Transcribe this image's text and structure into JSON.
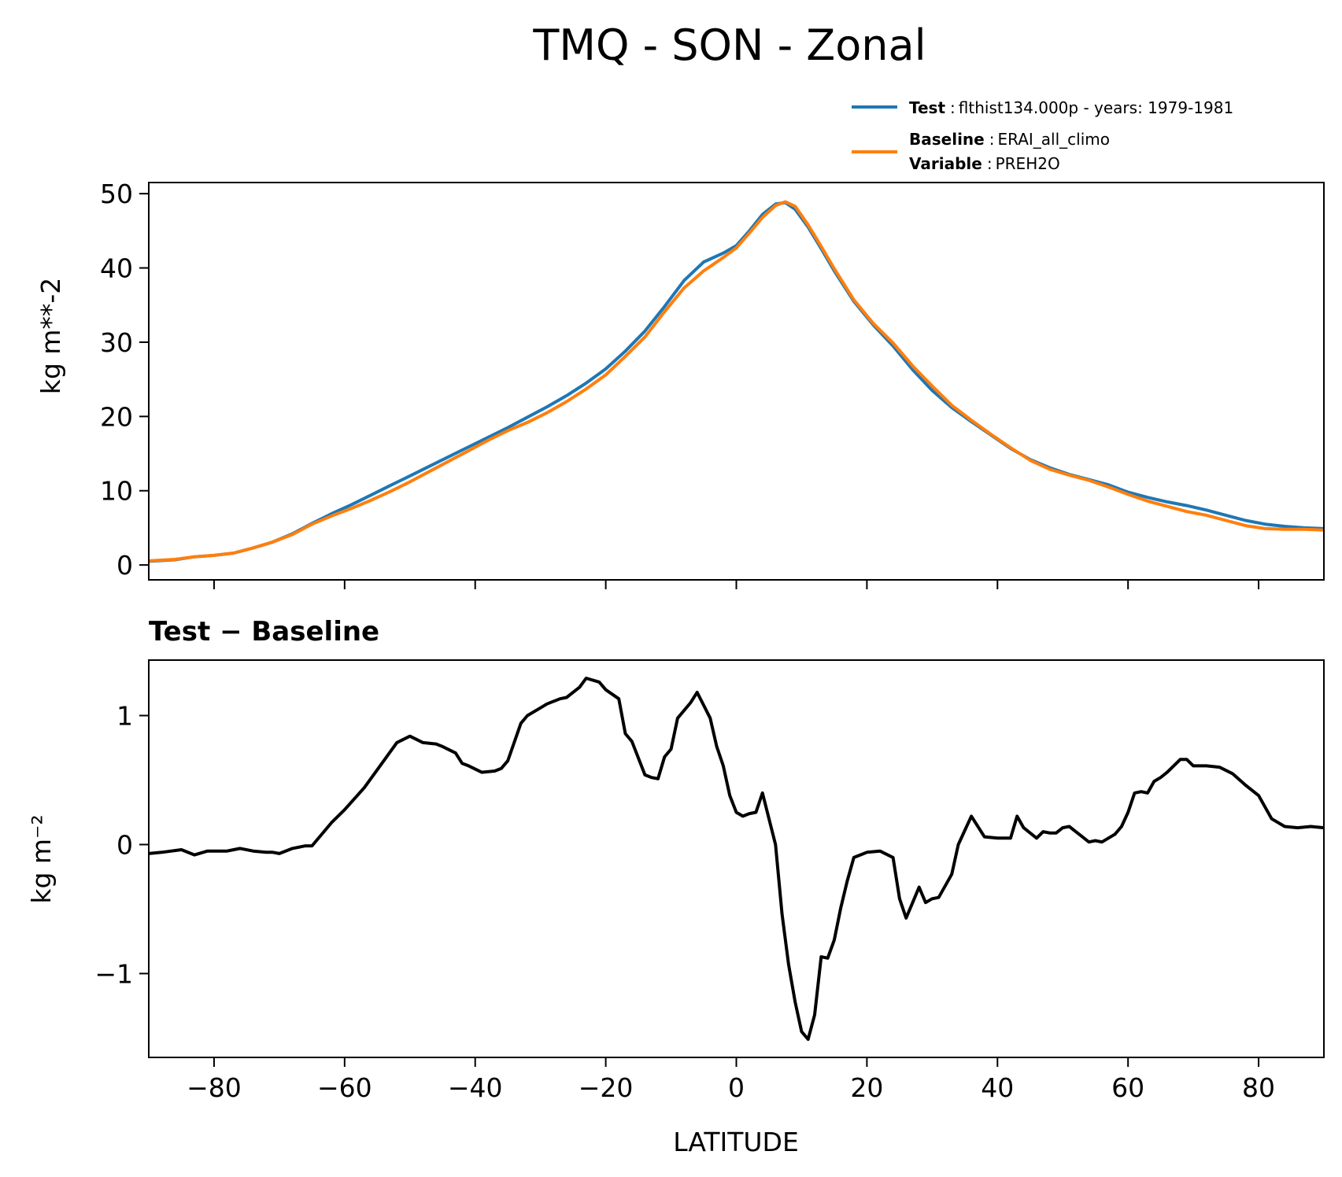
{
  "figure": {
    "title": "TMQ - SON - Zonal"
  },
  "legend": {
    "test_name": "Test",
    "test_desc": "flthist134.000p - years: 1979-1981",
    "baseline_name": "Baseline",
    "baseline_desc": "ERAI_all_climo",
    "variable_name": "Variable",
    "variable_desc": "PREH2O",
    "separator": ":"
  },
  "colors": {
    "test": "#1f77b4",
    "baseline": "#ff7f0e",
    "diff": "#000000"
  },
  "chart_data": [
    {
      "type": "line",
      "title": "",
      "xlabel": "",
      "ylabel": "kg m**-2",
      "xlim": [
        -90,
        90
      ],
      "ylim": [
        -2,
        51.5
      ],
      "yticks": [
        0,
        10,
        20,
        30,
        40,
        50
      ],
      "ytick_labels": [
        "0",
        "10",
        "20",
        "30",
        "40",
        "50"
      ],
      "xticks": [
        -80,
        -60,
        -40,
        -20,
        0,
        20,
        40,
        60,
        80
      ],
      "x": [
        -90,
        -86,
        -83,
        -80,
        -77,
        -74,
        -71,
        -68,
        -65,
        -62,
        -59,
        -56,
        -53,
        -50,
        -47,
        -44,
        -41,
        -38,
        -35,
        -32,
        -29,
        -26,
        -23,
        -20,
        -17,
        -14,
        -11,
        -8,
        -5,
        -2,
        0,
        2,
        4,
        6,
        7.5,
        9,
        11,
        13,
        15,
        18,
        21,
        24,
        27,
        30,
        33,
        36,
        39,
        42,
        45,
        48,
        51,
        54,
        57,
        60,
        63,
        66,
        69,
        72,
        75,
        78,
        81,
        84,
        87,
        90
      ],
      "series": [
        {
          "name": "Test",
          "values": [
            0.5,
            0.7,
            1.1,
            1.3,
            1.6,
            2.3,
            3.1,
            4.2,
            5.6,
            6.9,
            8.1,
            9.4,
            10.7,
            12.0,
            13.3,
            14.6,
            15.9,
            17.2,
            18.5,
            19.9,
            21.3,
            22.8,
            24.5,
            26.4,
            28.8,
            31.5,
            34.8,
            38.3,
            40.8,
            42.0,
            43.0,
            45.0,
            47.2,
            48.6,
            48.8,
            47.9,
            45.5,
            42.6,
            39.6,
            35.5,
            32.3,
            29.5,
            26.3,
            23.5,
            21.2,
            19.3,
            17.5,
            15.7,
            14.2,
            13.1,
            12.2,
            11.5,
            10.8,
            9.8,
            9.1,
            8.5,
            8.0,
            7.4,
            6.7,
            6.0,
            5.5,
            5.2,
            5.0,
            4.9
          ]
        },
        {
          "name": "Baseline",
          "values": [
            0.55,
            0.75,
            1.1,
            1.3,
            1.6,
            2.3,
            3.1,
            4.1,
            5.5,
            6.6,
            7.6,
            8.7,
            9.9,
            11.2,
            12.6,
            14.0,
            15.4,
            16.8,
            18.1,
            19.2,
            20.5,
            22.0,
            23.7,
            25.6,
            28.1,
            30.7,
            34.1,
            37.3,
            39.6,
            41.4,
            42.7,
            44.7,
            46.8,
            48.4,
            48.9,
            48.3,
            45.8,
            42.9,
            39.9,
            35.7,
            32.5,
            29.9,
            26.8,
            24.1,
            21.5,
            19.5,
            17.6,
            15.8,
            14.1,
            12.9,
            12.1,
            11.4,
            10.5,
            9.5,
            8.6,
            7.9,
            7.2,
            6.7,
            6.0,
            5.3,
            4.9,
            4.8,
            4.8,
            4.7
          ]
        }
      ]
    },
    {
      "type": "line",
      "title": "Test − Baseline",
      "xlabel": "LATITUDE",
      "ylabel": "kg m⁻²",
      "xlim": [
        -90,
        90
      ],
      "ylim": [
        -1.65,
        1.43
      ],
      "yticks": [
        -1,
        0,
        1
      ],
      "ytick_labels": [
        "−1",
        "0",
        "1"
      ],
      "xticks": [
        -80,
        -60,
        -40,
        -20,
        0,
        20,
        40,
        60,
        80
      ],
      "xtick_labels": [
        "−80",
        "−60",
        "−40",
        "−20",
        "0",
        "20",
        "40",
        "60",
        "80"
      ],
      "x": [
        -90,
        -88,
        -85,
        -83,
        -81,
        -80,
        -78,
        -77,
        -76,
        -74,
        -72,
        -71,
        -70,
        -68,
        -66,
        -65,
        -62,
        -60,
        -57,
        -55,
        -53,
        -52,
        -50,
        -48,
        -46,
        -45,
        -43,
        -42,
        -41,
        -39,
        -37,
        -36,
        -35,
        -33,
        -32,
        -30,
        -29,
        -27,
        -26,
        -24,
        -23,
        -21,
        -20,
        -18,
        -17,
        -16,
        -14,
        -13,
        -12,
        -11,
        -10,
        -9,
        -7,
        -6,
        -5,
        -4,
        -3,
        -2,
        -1,
        0,
        1,
        2,
        3,
        4,
        5,
        6,
        7,
        8,
        9,
        10,
        11,
        12,
        13,
        14,
        15,
        16,
        17,
        18,
        19,
        20,
        22,
        24,
        25,
        26,
        27,
        28,
        29,
        30,
        31,
        33,
        34,
        36,
        38,
        40,
        41,
        42,
        43,
        44,
        46,
        47,
        48,
        49,
        50,
        51,
        52,
        53,
        54,
        55,
        56,
        58,
        59,
        60,
        61,
        62,
        63,
        64,
        65,
        66,
        68,
        69,
        70,
        72,
        74,
        76,
        78,
        80,
        82,
        84,
        86,
        88,
        90
      ],
      "series": [
        {
          "name": "Test − Baseline",
          "values": [
            -0.07,
            -0.06,
            -0.04,
            -0.08,
            -0.05,
            -0.05,
            -0.05,
            -0.04,
            -0.03,
            -0.05,
            -0.06,
            -0.06,
            -0.07,
            -0.03,
            -0.01,
            -0.01,
            0.17,
            0.27,
            0.44,
            0.58,
            0.72,
            0.79,
            0.84,
            0.79,
            0.78,
            0.76,
            0.71,
            0.63,
            0.61,
            0.56,
            0.57,
            0.59,
            0.65,
            0.94,
            1.0,
            1.06,
            1.09,
            1.13,
            1.14,
            1.22,
            1.29,
            1.26,
            1.2,
            1.13,
            0.86,
            0.8,
            0.54,
            0.52,
            0.51,
            0.68,
            0.74,
            0.98,
            1.1,
            1.18,
            1.08,
            0.98,
            0.76,
            0.61,
            0.38,
            0.25,
            0.22,
            0.24,
            0.25,
            0.4,
            0.2,
            0.0,
            -0.54,
            -0.93,
            -1.22,
            -1.45,
            -1.51,
            -1.32,
            -0.87,
            -0.88,
            -0.74,
            -0.49,
            -0.28,
            -0.1,
            -0.08,
            -0.06,
            -0.05,
            -0.1,
            -0.42,
            -0.57,
            -0.45,
            -0.33,
            -0.45,
            -0.42,
            -0.41,
            -0.23,
            0.0,
            0.22,
            0.06,
            0.05,
            0.05,
            0.05,
            0.22,
            0.13,
            0.05,
            0.1,
            0.09,
            0.09,
            0.13,
            0.14,
            0.1,
            0.06,
            0.02,
            0.03,
            0.02,
            0.08,
            0.14,
            0.25,
            0.4,
            0.41,
            0.4,
            0.49,
            0.52,
            0.56,
            0.66,
            0.66,
            0.61,
            0.61,
            0.6,
            0.55,
            0.46,
            0.38,
            0.2,
            0.14,
            0.13,
            0.14,
            0.13
          ]
        }
      ]
    }
  ]
}
